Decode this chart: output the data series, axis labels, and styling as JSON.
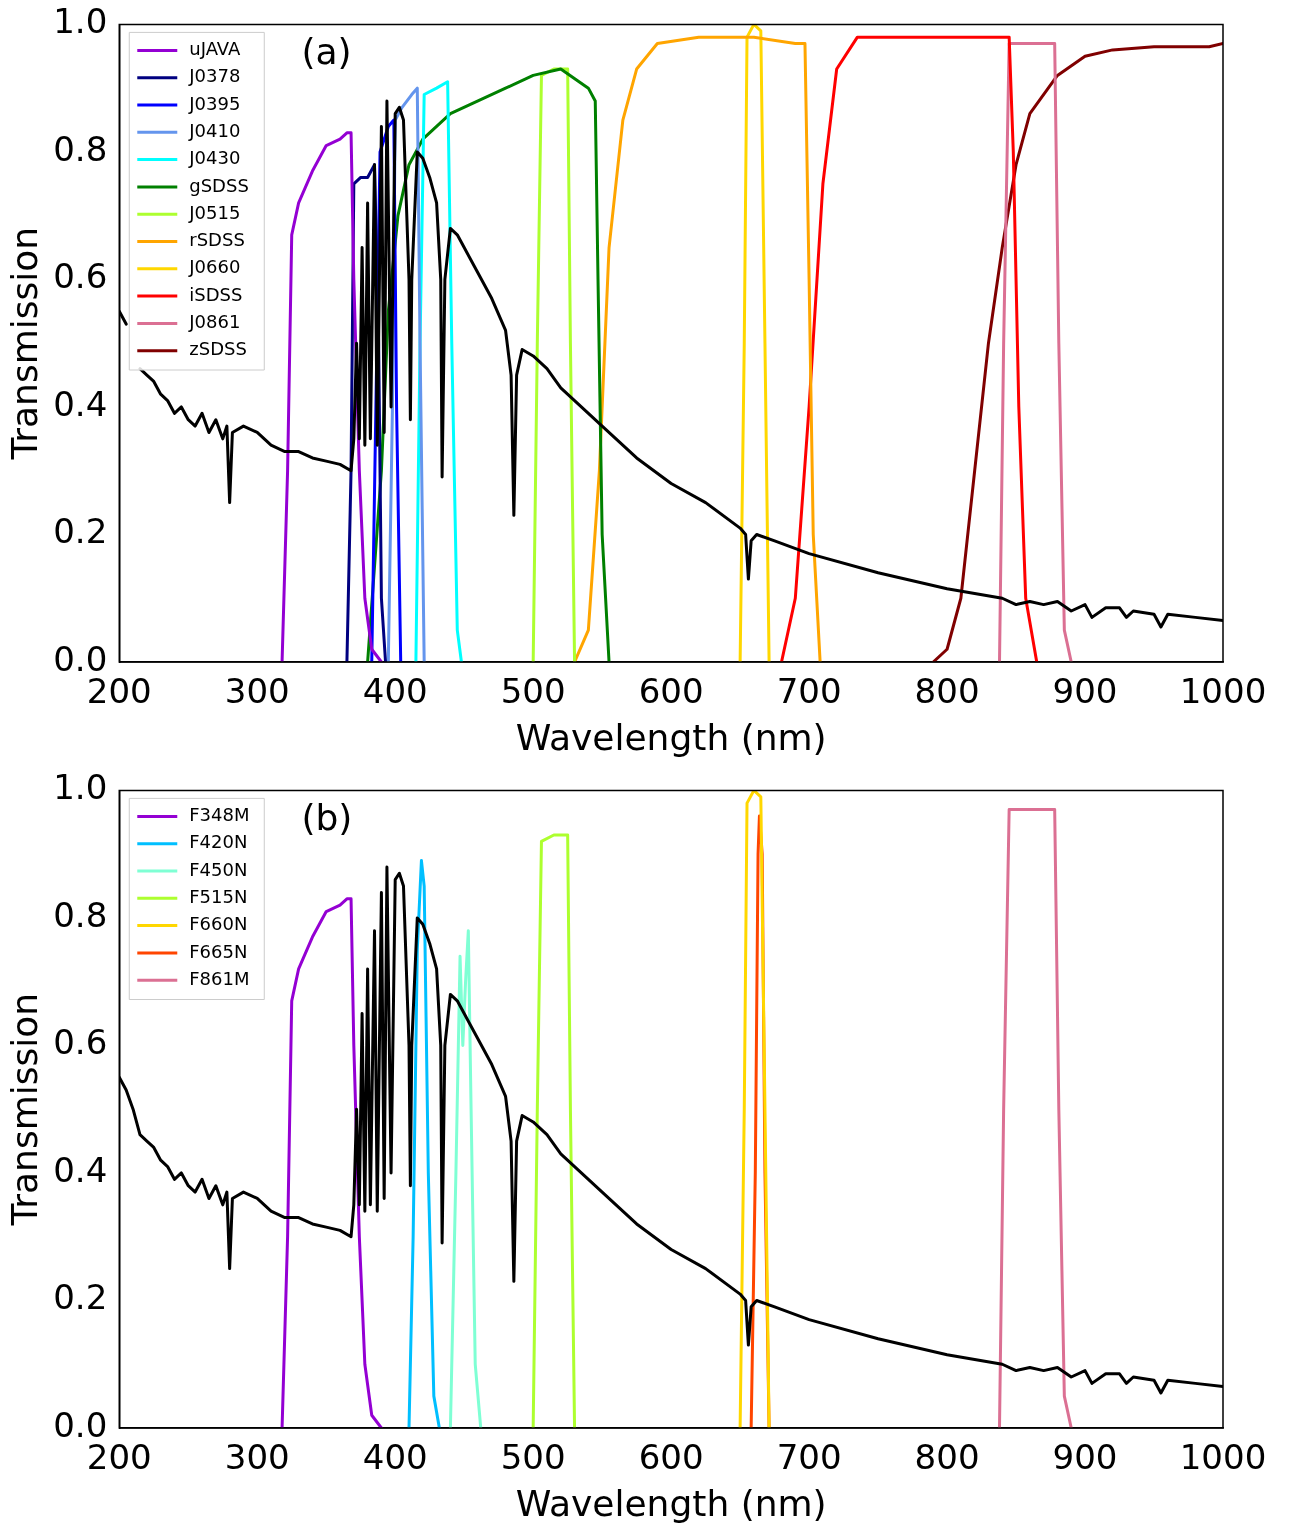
{
  "chart_data": [
    {
      "type": "line",
      "xlabel": "Wavelength (nm)",
      "ylabel": "Transmission",
      "annotations": [
        "(a)"
      ],
      "xlim": [
        200,
        1000
      ],
      "ylim": [
        0,
        1
      ],
      "xticks": [
        200,
        300,
        400,
        500,
        600,
        700,
        800,
        900,
        1000
      ],
      "yticks": [
        {
          "value": 0,
          "label": "0.0"
        },
        {
          "value": 0.2,
          "label": "0.2"
        },
        {
          "value": 0.4,
          "label": "0.4"
        },
        {
          "value": 0.6,
          "label": "0.6"
        },
        {
          "value": 0.8,
          "label": "0.8"
        },
        {
          "value": 1,
          "label": "1.0"
        }
      ],
      "grid": false,
      "legend": "top left",
      "marker": "none",
      "line_style": "solid",
      "series": [
        {
          "color": "#000000",
          "x": [
            200,
            205,
            210,
            215,
            220,
            225,
            230,
            235,
            240,
            245,
            250,
            255,
            260,
            265,
            270,
            275,
            278,
            280,
            282,
            290,
            300,
            310,
            320,
            330,
            340,
            350,
            360,
            368,
            370,
            372,
            374,
            376,
            378,
            380,
            382,
            385,
            387,
            390,
            392,
            394,
            397,
            400,
            403,
            406,
            410,
            411,
            412,
            416,
            420,
            425,
            430,
            433,
            434,
            436,
            440,
            445,
            450,
            460,
            470,
            480,
            484,
            486,
            488,
            492,
            500,
            510,
            520,
            530,
            550,
            575,
            600,
            625,
            650,
            654,
            656,
            658,
            662,
            675,
            700,
            750,
            800,
            840,
            850,
            860,
            870,
            880,
            890,
            900,
            905,
            915,
            925,
            930,
            935,
            950,
            955,
            960,
            980,
            1000
          ],
          "values": [
            0.55,
            0.53,
            null,
            0.46,
            0.45,
            0.44,
            0.42,
            0.41,
            0.39,
            0.4,
            0.38,
            0.37,
            0.39,
            0.36,
            0.38,
            0.35,
            0.37,
            0.25,
            0.36,
            0.37,
            0.36,
            0.34,
            0.33,
            0.33,
            0.32,
            0.315,
            0.31,
            0.3,
            0.35,
            0.5,
            0.35,
            0.65,
            0.34,
            0.72,
            0.35,
            0.78,
            0.34,
            0.84,
            0.36,
            0.88,
            0.4,
            0.86,
            0.87,
            0.85,
            0.6,
            0.38,
            0.6,
            0.8,
            0.79,
            0.76,
            0.72,
            0.6,
            0.29,
            0.6,
            0.68,
            0.67,
            0.65,
            0.61,
            0.57,
            0.52,
            0.45,
            0.23,
            0.45,
            0.49,
            0.48,
            0.46,
            0.43,
            0.41,
            0.37,
            0.32,
            0.28,
            0.25,
            0.21,
            0.2,
            0.13,
            0.19,
            0.2,
            0.19,
            0.17,
            0.14,
            0.115,
            0.1,
            0.09,
            0.095,
            0.09,
            0.095,
            0.08,
            0.09,
            0.07,
            0.085,
            0.085,
            0.07,
            0.08,
            0.075,
            0.055,
            0.075,
            0.07,
            0.065
          ]
        },
        {
          "name": "uJAVA",
          "color": "#9400d3",
          "x": [
            318,
            322,
            325,
            330,
            340,
            350,
            360,
            365,
            368,
            370,
            374,
            378,
            383,
            390
          ],
          "values": [
            0,
            0.3,
            0.67,
            0.72,
            0.77,
            0.81,
            0.82,
            0.83,
            0.83,
            0.6,
            0.3,
            0.1,
            0.02,
            0
          ]
        },
        {
          "name": "J0378",
          "color": "#000080",
          "x": [
            365,
            368,
            370,
            375,
            380,
            385,
            388,
            390,
            393
          ],
          "values": [
            0,
            0.3,
            0.75,
            0.76,
            0.76,
            0.78,
            0.5,
            0.1,
            0
          ]
        },
        {
          "name": "J0395",
          "color": "#0000ff",
          "x": [
            383,
            386,
            389,
            395,
            399,
            401,
            404
          ],
          "values": [
            0,
            0.4,
            0.8,
            0.84,
            0.85,
            0.4,
            0
          ]
        },
        {
          "name": "J0410",
          "color": "#6495ed",
          "x": [
            395,
            398,
            400,
            405,
            412,
            416,
            418,
            421
          ],
          "values": [
            0,
            0.4,
            0.85,
            0.87,
            0.89,
            0.9,
            0.5,
            0
          ]
        },
        {
          "name": "J0430",
          "color": "#00ffff",
          "x": [
            415,
            418,
            421,
            430,
            438,
            441,
            445,
            448
          ],
          "values": [
            0,
            0.5,
            0.89,
            0.9,
            0.91,
            0.5,
            0.05,
            0
          ]
        },
        {
          "name": "gSDSS",
          "color": "#008000",
          "x": [
            380,
            390,
            395,
            402,
            410,
            420,
            440,
            460,
            480,
            500,
            520,
            540,
            545,
            547,
            550,
            555
          ],
          "values": [
            0,
            0.3,
            0.55,
            0.7,
            0.78,
            0.82,
            0.86,
            0.88,
            0.9,
            0.92,
            0.93,
            0.9,
            0.88,
            0.6,
            0.2,
            0
          ]
        },
        {
          "name": "J0515",
          "color": "#adff2f",
          "x": [
            500,
            503,
            506,
            515,
            525,
            527,
            530
          ],
          "values": [
            0,
            0.5,
            0.92,
            0.93,
            0.93,
            0.5,
            0
          ]
        },
        {
          "name": "rSDSS",
          "color": "#ffa500",
          "x": [
            530,
            540,
            548,
            555,
            565,
            575,
            590,
            620,
            660,
            690,
            697,
            700,
            703,
            708
          ],
          "values": [
            0,
            0.05,
            0.3,
            0.65,
            0.85,
            0.93,
            0.97,
            0.98,
            0.98,
            0.97,
            0.97,
            0.6,
            0.2,
            0
          ]
        },
        {
          "name": "J0660",
          "color": "#ffd700",
          "x": [
            650,
            653,
            655,
            660,
            665,
            668,
            671
          ],
          "values": [
            0,
            0.5,
            0.98,
            1,
            0.99,
            0.5,
            0
          ]
        },
        {
          "name": "iSDSS",
          "color": "#ff0000",
          "x": [
            680,
            690,
            700,
            710,
            720,
            735,
            800,
            845,
            848,
            852,
            857,
            865
          ],
          "values": [
            0,
            0.1,
            0.4,
            0.75,
            0.93,
            0.98,
            0.98,
            0.98,
            0.8,
            0.4,
            0.1,
            0
          ]
        },
        {
          "name": "J0861",
          "color": "#db7093",
          "x": [
            838,
            841,
            845,
            860,
            878,
            881,
            885,
            890
          ],
          "values": [
            0,
            0.5,
            0.97,
            0.97,
            0.97,
            0.5,
            0.05,
            0
          ]
        },
        {
          "name": "zSDSS",
          "color": "#800000",
          "x": [
            790,
            800,
            810,
            820,
            830,
            840,
            850,
            860,
            880,
            900,
            920,
            950,
            990,
            1000
          ],
          "values": [
            0,
            0.02,
            0.1,
            0.3,
            0.5,
            0.65,
            0.78,
            0.86,
            0.92,
            0.95,
            0.96,
            0.965,
            0.965,
            0.97
          ]
        }
      ]
    },
    {
      "type": "line",
      "xlabel": "Wavelength (nm)",
      "ylabel": "Transmission",
      "annotations": [
        "(b)"
      ],
      "xlim": [
        200,
        1000
      ],
      "ylim": [
        0,
        1
      ],
      "xticks": [
        200,
        300,
        400,
        500,
        600,
        700,
        800,
        900,
        1000
      ],
      "yticks": [
        {
          "value": 0,
          "label": "0.0"
        },
        {
          "value": 0.2,
          "label": "0.2"
        },
        {
          "value": 0.4,
          "label": "0.4"
        },
        {
          "value": 0.6,
          "label": "0.6"
        },
        {
          "value": 0.8,
          "label": "0.8"
        },
        {
          "value": 1,
          "label": "1.0"
        }
      ],
      "grid": false,
      "legend": "top left",
      "marker": "none",
      "line_style": "solid",
      "series": [
        {
          "color": "#000000",
          "x": [
            200,
            205,
            210,
            215,
            220,
            225,
            230,
            235,
            240,
            245,
            250,
            255,
            260,
            265,
            270,
            275,
            278,
            280,
            282,
            290,
            300,
            310,
            320,
            330,
            340,
            350,
            360,
            368,
            370,
            372,
            374,
            376,
            378,
            380,
            382,
            385,
            387,
            390,
            392,
            394,
            397,
            400,
            403,
            406,
            410,
            411,
            412,
            416,
            420,
            425,
            430,
            433,
            434,
            436,
            440,
            445,
            450,
            460,
            470,
            480,
            484,
            486,
            488,
            492,
            500,
            510,
            520,
            530,
            550,
            575,
            600,
            625,
            650,
            654,
            656,
            658,
            662,
            675,
            700,
            750,
            800,
            840,
            850,
            860,
            870,
            880,
            890,
            900,
            905,
            915,
            925,
            930,
            935,
            950,
            955,
            960,
            980,
            1000
          ],
          "values": [
            0.55,
            0.53,
            0.5,
            0.46,
            0.45,
            0.44,
            0.42,
            0.41,
            0.39,
            0.4,
            0.38,
            0.37,
            0.39,
            0.36,
            0.38,
            0.35,
            0.37,
            0.25,
            0.36,
            0.37,
            0.36,
            0.34,
            0.33,
            0.33,
            0.32,
            0.315,
            0.31,
            0.3,
            0.35,
            0.5,
            0.35,
            0.65,
            0.34,
            0.72,
            0.35,
            0.78,
            0.34,
            0.84,
            0.36,
            0.88,
            0.4,
            0.86,
            0.87,
            0.85,
            0.6,
            0.38,
            0.6,
            0.8,
            0.79,
            0.76,
            0.72,
            0.6,
            0.29,
            0.6,
            0.68,
            0.67,
            0.65,
            0.61,
            0.57,
            0.52,
            0.45,
            0.23,
            0.45,
            0.49,
            0.48,
            0.46,
            0.43,
            0.41,
            0.37,
            0.32,
            0.28,
            0.25,
            0.21,
            0.2,
            0.13,
            0.19,
            0.2,
            0.19,
            0.17,
            0.14,
            0.115,
            0.1,
            0.09,
            0.095,
            0.09,
            0.095,
            0.08,
            0.09,
            0.07,
            0.085,
            0.085,
            0.07,
            0.08,
            0.075,
            0.055,
            0.075,
            0.07,
            0.065
          ]
        },
        {
          "name": "F348M",
          "color": "#9400d3",
          "x": [
            318,
            322,
            325,
            330,
            340,
            350,
            360,
            365,
            368,
            370,
            374,
            378,
            383,
            390
          ],
          "values": [
            0,
            0.3,
            0.67,
            0.72,
            0.77,
            0.81,
            0.82,
            0.83,
            0.83,
            0.6,
            0.3,
            0.1,
            0.02,
            0
          ]
        },
        {
          "name": "F420N",
          "color": "#00bfff",
          "x": [
            410,
            413,
            416,
            419,
            421,
            424,
            428,
            432
          ],
          "values": [
            0,
            0.3,
            0.75,
            0.89,
            0.85,
            0.4,
            0.05,
            0
          ]
        },
        {
          "name": "F450N",
          "color": "#7fffd4",
          "x": [
            440,
            444,
            447,
            449,
            451,
            453,
            455,
            458,
            462
          ],
          "values": [
            0,
            0.4,
            0.74,
            0.6,
            0.7,
            0.78,
            0.5,
            0.1,
            0
          ]
        },
        {
          "name": "F515N",
          "color": "#adff2f",
          "x": [
            500,
            503,
            506,
            515,
            525,
            527,
            530
          ],
          "values": [
            0,
            0.5,
            0.92,
            0.93,
            0.93,
            0.5,
            0
          ]
        },
        {
          "name": "F660N",
          "color": "#ffd700",
          "x": [
            650,
            653,
            655,
            660,
            665,
            668,
            671
          ],
          "values": [
            0,
            0.5,
            0.98,
            1,
            0.99,
            0.5,
            0
          ]
        },
        {
          "name": "F665N",
          "color": "#ff4500",
          "x": [
            658,
            661,
            663,
            664,
            666,
            668,
            671
          ],
          "values": [
            0,
            0.4,
            0.9,
            0.96,
            0.9,
            0.4,
            0
          ]
        },
        {
          "name": "F861M",
          "color": "#db7093",
          "x": [
            838,
            841,
            845,
            860,
            878,
            881,
            885,
            890
          ],
          "values": [
            0,
            0.5,
            0.97,
            0.97,
            0.97,
            0.5,
            0.05,
            0
          ]
        }
      ]
    }
  ]
}
